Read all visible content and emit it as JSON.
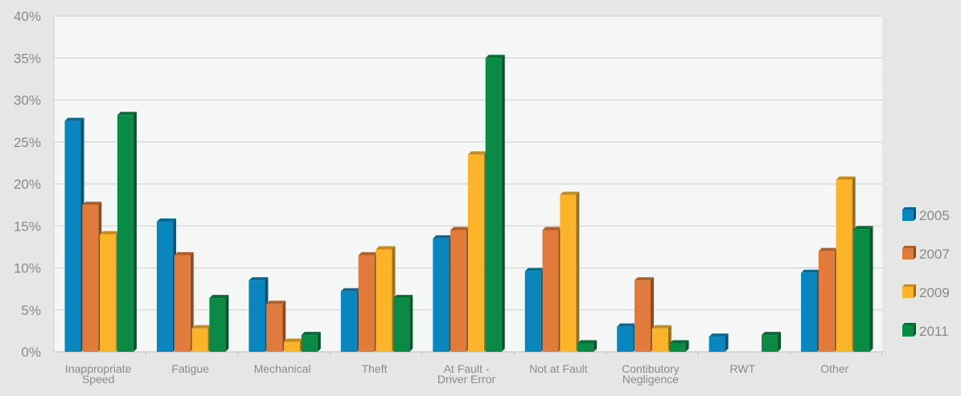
{
  "chart_data": {
    "type": "bar",
    "categories": [
      [
        "Inappropriate",
        "Speed"
      ],
      [
        "Fatigue"
      ],
      [
        "Mechanical"
      ],
      [
        "Theft"
      ],
      [
        "At Fault -",
        "Driver Error"
      ],
      [
        "Not at Fault"
      ],
      [
        "Contibutory",
        "Negligence"
      ],
      [
        "RWT"
      ],
      [
        "Other"
      ]
    ],
    "series": [
      {
        "name": "2005",
        "color": "#0a86bf",
        "values": [
          27.5,
          15.5,
          8.5,
          7.2,
          13.5,
          9.6,
          3.0,
          1.8,
          9.4
        ]
      },
      {
        "name": "2007",
        "color": "#e07b3c",
        "values": [
          17.5,
          11.5,
          5.7,
          11.5,
          14.5,
          14.5,
          8.5,
          0,
          12.0
        ]
      },
      {
        "name": "2009",
        "color": "#fbb429",
        "values": [
          14.0,
          2.8,
          1.2,
          12.2,
          23.5,
          18.7,
          2.8,
          0,
          20.5
        ]
      },
      {
        "name": "2011",
        "color": "#0a8b45",
        "values": [
          28.2,
          6.4,
          2.0,
          6.4,
          35.0,
          1.0,
          1.0,
          2.0,
          14.6
        ]
      }
    ],
    "y_ticks": [
      "0%",
      "5%",
      "10%",
      "15%",
      "20%",
      "25%",
      "30%",
      "35%",
      "40%"
    ],
    "ylim": [
      0,
      40
    ],
    "grid": true,
    "legend_position": "right",
    "title": "",
    "xlabel": "",
    "ylabel": ""
  }
}
